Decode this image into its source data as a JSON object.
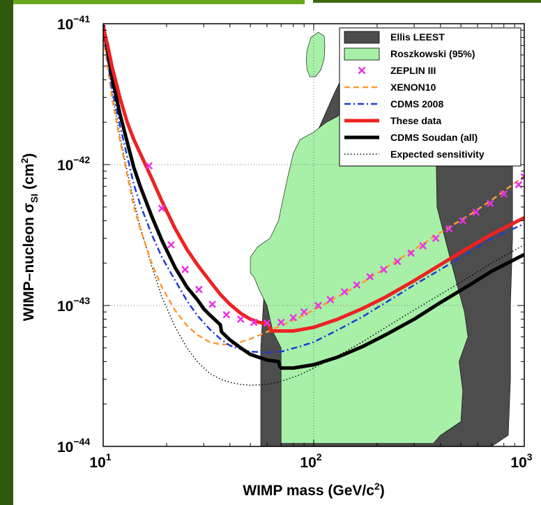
{
  "chart_data": {
    "type": "line",
    "xlabel": "WIMP mass (GeV/c",
    "xlabel_sup": "2",
    "xlabel_end": ")",
    "ylabel": "WIMP–nucleon σ",
    "ylabel_sub": "SI",
    "ylabel_mid": " (cm",
    "ylabel_sup": "2",
    "ylabel_end": ")",
    "x_scale": "log",
    "y_scale": "log",
    "xlim": [
      10,
      1000
    ],
    "ylim": [
      1e-44,
      1e-41
    ],
    "x_ticks": [
      {
        "base": "10",
        "exp": "1"
      },
      {
        "base": "10",
        "exp": "2"
      },
      {
        "base": "10",
        "exp": "3"
      }
    ],
    "y_ticks": [
      {
        "base": "10",
        "exp": "−41"
      },
      {
        "base": "10",
        "exp": "−42"
      },
      {
        "base": "10",
        "exp": "−43"
      },
      {
        "base": "10",
        "exp": "−44"
      }
    ],
    "grid": true,
    "legend_position": "top-right",
    "regions": [
      {
        "name": "Ellis LEEST",
        "color": "#4d4d4d",
        "points": [
          [
            62,
            1.8e-43
          ],
          [
            72,
            4.2e-43
          ],
          [
            80,
            1.1e-42
          ],
          [
            100,
            1.5e-42
          ],
          [
            125,
            3.2e-42
          ],
          [
            140,
            4.5e-42
          ],
          [
            155,
            8e-42
          ],
          [
            180,
            8.2e-42
          ],
          [
            200,
            7.5e-42
          ],
          [
            230,
            7e-42
          ],
          [
            350,
            8e-42
          ],
          [
            600,
            7.5e-42
          ],
          [
            820,
            6.5e-42
          ],
          [
            870,
            4e-42
          ],
          [
            880,
            1e-42
          ],
          [
            880,
            3e-43
          ],
          [
            860,
            1e-43
          ],
          [
            860,
            3e-44
          ],
          [
            840,
            1.2e-44
          ],
          [
            700,
            1e-44
          ],
          [
            56,
            1e-44
          ],
          [
            56,
            5e-44
          ],
          [
            58,
            1.2e-43
          ],
          [
            62,
            1.8e-43
          ]
        ]
      },
      {
        "name": "Roszkowski (95%)",
        "color": "#a8f0a8",
        "points": [
          [
            130,
            2.2e-42
          ],
          [
            175,
            4.3e-42
          ],
          [
            185,
            5.5e-42
          ],
          [
            200,
            6.5e-42
          ],
          [
            250,
            7.5e-42
          ],
          [
            300,
            7.8e-42
          ],
          [
            350,
            7.4e-42
          ],
          [
            380,
            5.8e-42
          ],
          [
            385,
            3e-42
          ],
          [
            380,
            1.5e-42
          ],
          [
            385,
            5e-43
          ],
          [
            420,
            3e-43
          ],
          [
            480,
            1.4e-43
          ],
          [
            520,
            9e-44
          ],
          [
            540,
            6e-44
          ],
          [
            490,
            4e-44
          ],
          [
            510,
            2.5e-44
          ],
          [
            500,
            1.5e-44
          ],
          [
            400,
            1.2e-44
          ],
          [
            370,
            1.05e-44
          ],
          [
            70,
            1.05e-44
          ],
          [
            70,
            1.4e-44
          ],
          [
            70,
            2.2e-44
          ],
          [
            70,
            5e-44
          ],
          [
            64,
            6.5e-44
          ],
          [
            60,
            1e-43
          ],
          [
            55,
            1.3e-43
          ],
          [
            52,
            1.6e-43
          ],
          [
            50,
            1.7e-43
          ],
          [
            50,
            2.2e-43
          ],
          [
            54,
            2.6e-43
          ],
          [
            62,
            3e-43
          ],
          [
            68,
            4e-43
          ],
          [
            72,
            6e-43
          ],
          [
            75,
            8e-43
          ],
          [
            80,
            1.2e-42
          ],
          [
            86,
            1.5e-42
          ],
          [
            100,
            1.7e-42
          ],
          [
            115,
            2e-42
          ],
          [
            130,
            2.2e-42
          ]
        ]
      },
      {
        "name": "",
        "color": "#a8f0a8",
        "points": [
          [
            93,
            6.5e-42
          ],
          [
            97,
            8e-42
          ],
          [
            105,
            8.7e-42
          ],
          [
            112,
            8.2e-42
          ],
          [
            113,
            7e-42
          ],
          [
            112,
            5.6e-42
          ],
          [
            108,
            4.7e-42
          ],
          [
            102,
            4.2e-42
          ],
          [
            96,
            4.2e-42
          ],
          [
            93,
            4.7e-42
          ],
          [
            92,
            5.6e-42
          ],
          [
            93,
            6.5e-42
          ]
        ]
      }
    ],
    "series": [
      {
        "name": "ZEPLIN III",
        "color": "#e633e6",
        "style": "markers",
        "x": [
          16.5,
          19,
          21,
          24.5,
          28.5,
          33,
          38.5,
          45,
          52,
          60,
          70,
          80,
          90,
          105,
          120,
          140,
          160,
          185,
          215,
          250,
          290,
          330,
          380,
          440,
          510,
          590,
          690,
          800,
          940,
          1000
        ],
        "y": [
          9.8e-43,
          4.9e-43,
          2.7e-43,
          1.8e-43,
          1.3e-43,
          1.02e-43,
          8.6e-44,
          8e-44,
          7.6e-44,
          7.5e-44,
          7.6e-44,
          8.2e-44,
          9e-44,
          1e-43,
          1.1e-43,
          1.25e-43,
          1.4e-43,
          1.6e-43,
          1.8e-43,
          2.05e-43,
          2.35e-43,
          2.65e-43,
          3e-43,
          3.5e-43,
          4e-43,
          4.6e-43,
          5.3e-43,
          6.2e-43,
          7.2e-43,
          8.2e-43
        ]
      },
      {
        "name": "XENON10",
        "color": "#ff9933",
        "style": "dashed",
        "x": [
          10,
          10.5,
          11,
          12,
          13,
          14,
          15,
          17,
          19,
          22,
          25,
          28,
          32,
          36,
          40,
          45,
          50,
          60,
          70,
          85,
          100,
          130,
          170,
          220,
          300,
          400,
          550,
          700,
          1000
        ],
        "y": [
          8e-42,
          5e-42,
          3e-42,
          1.5e-42,
          8.5e-43,
          5e-43,
          3.5e-43,
          2e-43,
          1.35e-43,
          9.2e-44,
          7.2e-44,
          6.2e-44,
          5.5e-44,
          5.3e-44,
          5.3e-44,
          5.5e-44,
          5.8e-44,
          6.5e-44,
          7.2e-44,
          8.2e-44,
          9.3e-44,
          1.15e-43,
          1.45e-43,
          1.85e-43,
          2.5e-43,
          3.3e-43,
          4.4e-43,
          5.6e-43,
          8.3e-43
        ]
      },
      {
        "name": "CDMS 2008",
        "color": "#1f3bd6",
        "style": "dashdot",
        "x": [
          10,
          10.5,
          11,
          12,
          13,
          14,
          15,
          17,
          19,
          22,
          25,
          28,
          32,
          36,
          40,
          45,
          50,
          60,
          70,
          85,
          100,
          130,
          170,
          220,
          300,
          400,
          550,
          700,
          1000
        ],
        "y": [
          9e-42,
          5.5e-42,
          3.5e-42,
          1.9e-42,
          1.15e-42,
          7.2e-43,
          5.2e-43,
          3.2e-43,
          2.2e-43,
          1.5e-43,
          1.08e-43,
          8.5e-44,
          6.8e-44,
          5.8e-44,
          5.2e-44,
          4.9e-44,
          4.7e-44,
          4.65e-44,
          4.7e-44,
          5.1e-44,
          5.5e-44,
          6.7e-44,
          8.3e-44,
          1.05e-43,
          1.4e-43,
          1.8e-43,
          2.4e-43,
          3e-43,
          3.8e-43
        ]
      },
      {
        "name": "These data",
        "color": "#ee2222",
        "style": "solid-thick",
        "x": [
          10,
          10.5,
          11,
          12,
          13,
          14,
          15,
          17,
          19,
          22,
          25,
          28,
          32,
          36,
          40,
          45,
          50,
          55,
          60,
          61,
          63,
          65,
          70,
          80,
          100,
          130,
          170,
          220,
          300,
          400,
          550,
          700,
          1000
        ],
        "y": [
          9.5e-42,
          7e-42,
          5e-42,
          3e-42,
          2e-42,
          1.5e-42,
          1.2e-42,
          8e-43,
          5.5e-43,
          3.5e-43,
          2.5e-43,
          1.95e-43,
          1.5e-43,
          1.2e-43,
          1.02e-43,
          8.8e-44,
          8e-44,
          7.6e-44,
          7.4e-44,
          7.3e-44,
          6.6e-44,
          6.6e-44,
          6.6e-44,
          6.6e-44,
          7e-44,
          8e-44,
          9.5e-44,
          1.15e-43,
          1.5e-43,
          1.95e-43,
          2.6e-43,
          3.2e-43,
          4.2e-43
        ]
      },
      {
        "name": "CDMS Soudan (all)",
        "color": "#000000",
        "style": "solid-thick",
        "x": [
          10,
          10.5,
          11,
          12,
          13,
          14,
          15,
          17,
          19,
          22,
          25,
          28,
          30,
          32,
          36,
          36.5,
          40,
          45,
          50,
          60,
          68,
          69,
          70,
          80,
          100,
          130,
          170,
          220,
          300,
          400,
          550,
          700,
          1000
        ],
        "y": [
          9.8e-42,
          6.5e-42,
          4.2e-42,
          2.3e-42,
          1.45e-42,
          9.5e-43,
          7e-43,
          4.3e-43,
          2.9e-43,
          1.85e-43,
          1.35e-43,
          1.1e-43,
          9.5e-44,
          8.6e-44,
          7.3e-44,
          6.5e-44,
          5.7e-44,
          5e-44,
          4.5e-44,
          4.1e-44,
          4e-44,
          3.7e-44,
          3.6e-44,
          3.6e-44,
          3.8e-44,
          4.3e-44,
          5.1e-44,
          6.2e-44,
          8e-44,
          1.05e-43,
          1.4e-43,
          1.75e-43,
          2.3e-43
        ]
      },
      {
        "name": "Expected sensitivity",
        "color": "#000000",
        "style": "dotted",
        "x": [
          10,
          10.5,
          11,
          12,
          13,
          14,
          15,
          17,
          19,
          22,
          25,
          28,
          32,
          36,
          40,
          45,
          50,
          60,
          70,
          85,
          100,
          130,
          170,
          220,
          300,
          400,
          550,
          700,
          1000
        ],
        "y": [
          9.2e-42,
          5.5e-42,
          3.3e-42,
          1.6e-42,
          9e-43,
          5.5e-43,
          3.6e-43,
          1.9e-43,
          1.15e-43,
          7e-44,
          5e-44,
          4e-44,
          3.3e-44,
          3e-44,
          2.85e-44,
          2.75e-44,
          2.72e-44,
          2.75e-44,
          2.9e-44,
          3.2e-44,
          3.6e-44,
          4.4e-44,
          5.5e-44,
          7e-44,
          9.3e-44,
          1.2e-43,
          1.6e-43,
          2e-43,
          2.7e-43
        ]
      }
    ]
  }
}
